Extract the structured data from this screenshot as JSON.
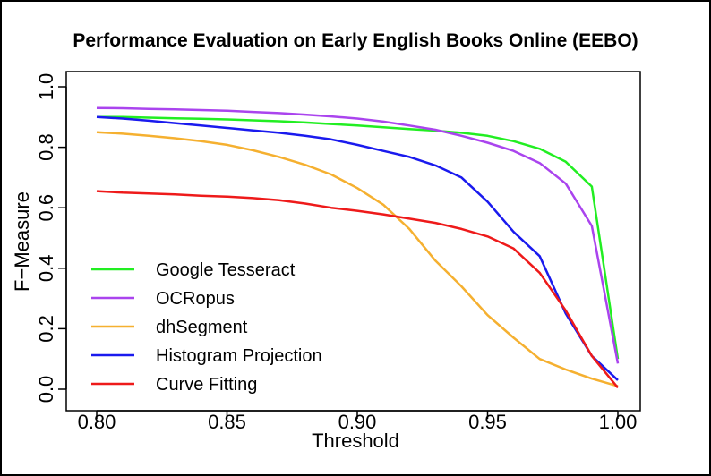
{
  "chart_data": {
    "type": "line",
    "title": "Performance Evaluation on Early English Books Online (EEBO)",
    "xlabel": "Threshold",
    "ylabel": "F−Measure",
    "xlim": [
      0.8,
      1.0
    ],
    "ylim": [
      0.0,
      1.0
    ],
    "x_ticks": [
      "0.80",
      "0.85",
      "0.90",
      "0.95",
      "1.00"
    ],
    "y_ticks": [
      "0.0",
      "0.2",
      "0.4",
      "0.6",
      "0.8",
      "1.0"
    ],
    "grid": false,
    "legend": "bottom-left",
    "x": [
      0.8,
      0.81,
      0.82,
      0.83,
      0.84,
      0.85,
      0.86,
      0.87,
      0.88,
      0.89,
      0.9,
      0.91,
      0.92,
      0.93,
      0.94,
      0.95,
      0.96,
      0.97,
      0.98,
      0.99,
      1.0
    ],
    "series": [
      {
        "name": "Google Tesseract",
        "color": "#22ee22",
        "values": [
          0.9,
          0.9,
          0.898,
          0.896,
          0.894,
          0.892,
          0.889,
          0.886,
          0.882,
          0.877,
          0.872,
          0.866,
          0.86,
          0.855,
          0.848,
          0.838,
          0.82,
          0.795,
          0.752,
          0.67,
          0.1
        ]
      },
      {
        "name": "OCRopus",
        "color": "#aa44ee",
        "values": [
          0.93,
          0.929,
          0.927,
          0.925,
          0.923,
          0.921,
          0.917,
          0.913,
          0.908,
          0.902,
          0.895,
          0.885,
          0.872,
          0.858,
          0.838,
          0.815,
          0.788,
          0.748,
          0.68,
          0.54,
          0.085
        ]
      },
      {
        "name": "dhSegment",
        "color": "#f5b030",
        "values": [
          0.85,
          0.845,
          0.838,
          0.83,
          0.82,
          0.808,
          0.79,
          0.768,
          0.742,
          0.71,
          0.665,
          0.61,
          0.53,
          0.425,
          0.34,
          0.245,
          0.17,
          0.1,
          0.065,
          0.035,
          0.01
        ]
      },
      {
        "name": "Histogram Projection",
        "color": "#1a1aee",
        "values": [
          0.9,
          0.895,
          0.888,
          0.88,
          0.872,
          0.864,
          0.856,
          0.848,
          0.838,
          0.826,
          0.808,
          0.788,
          0.768,
          0.74,
          0.7,
          0.62,
          0.52,
          0.44,
          0.25,
          0.11,
          0.03
        ]
      },
      {
        "name": "Curve Fitting",
        "color": "#ee1a1a",
        "values": [
          0.655,
          0.65,
          0.647,
          0.644,
          0.64,
          0.637,
          0.632,
          0.625,
          0.614,
          0.6,
          0.59,
          0.578,
          0.564,
          0.55,
          0.53,
          0.505,
          0.465,
          0.385,
          0.26,
          0.11,
          0.005
        ]
      }
    ]
  }
}
